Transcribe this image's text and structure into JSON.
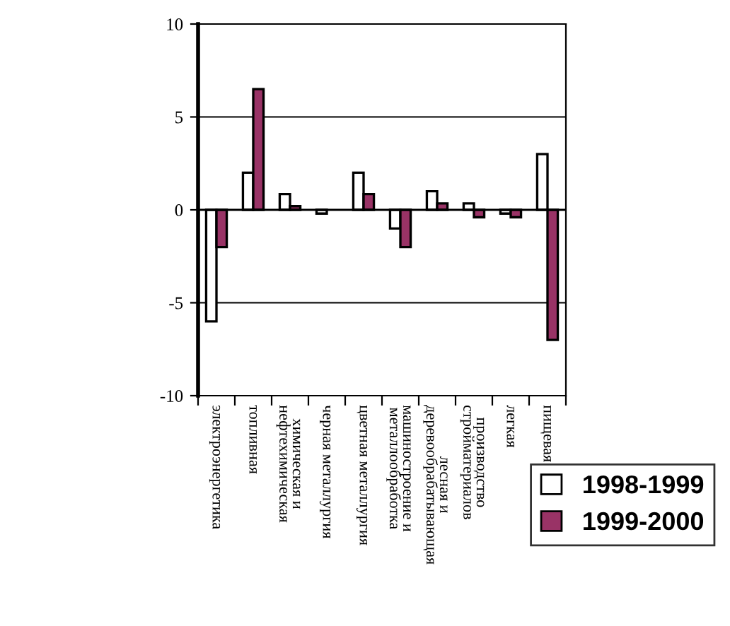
{
  "chart_data": {
    "type": "bar",
    "categories": [
      "электроэнергетика",
      "топливная",
      "химическая и\nнефтехимическая",
      "черная металлургия",
      "цветная металлургия",
      "машиностроение и\nметаллообработка",
      "лесная и\nдеревообрабатывающая",
      "производство\nстройматериалов",
      "легкая",
      "пищевая"
    ],
    "series": [
      {
        "name": "1998-1999",
        "color": "#ffffff",
        "values": [
          -6,
          2,
          0.85,
          -0.2,
          2,
          -1,
          1,
          0.35,
          -0.2,
          3
        ]
      },
      {
        "name": "1999-2000",
        "color": "#993366",
        "values": [
          -2,
          6.5,
          0.2,
          null,
          0.85,
          -2,
          0.35,
          -0.4,
          -0.4,
          -7
        ]
      }
    ],
    "ylim": [
      -10,
      10
    ],
    "yticks": [
      -10,
      -5,
      0,
      5,
      10
    ],
    "grid": "y",
    "legend": "bottom right"
  }
}
